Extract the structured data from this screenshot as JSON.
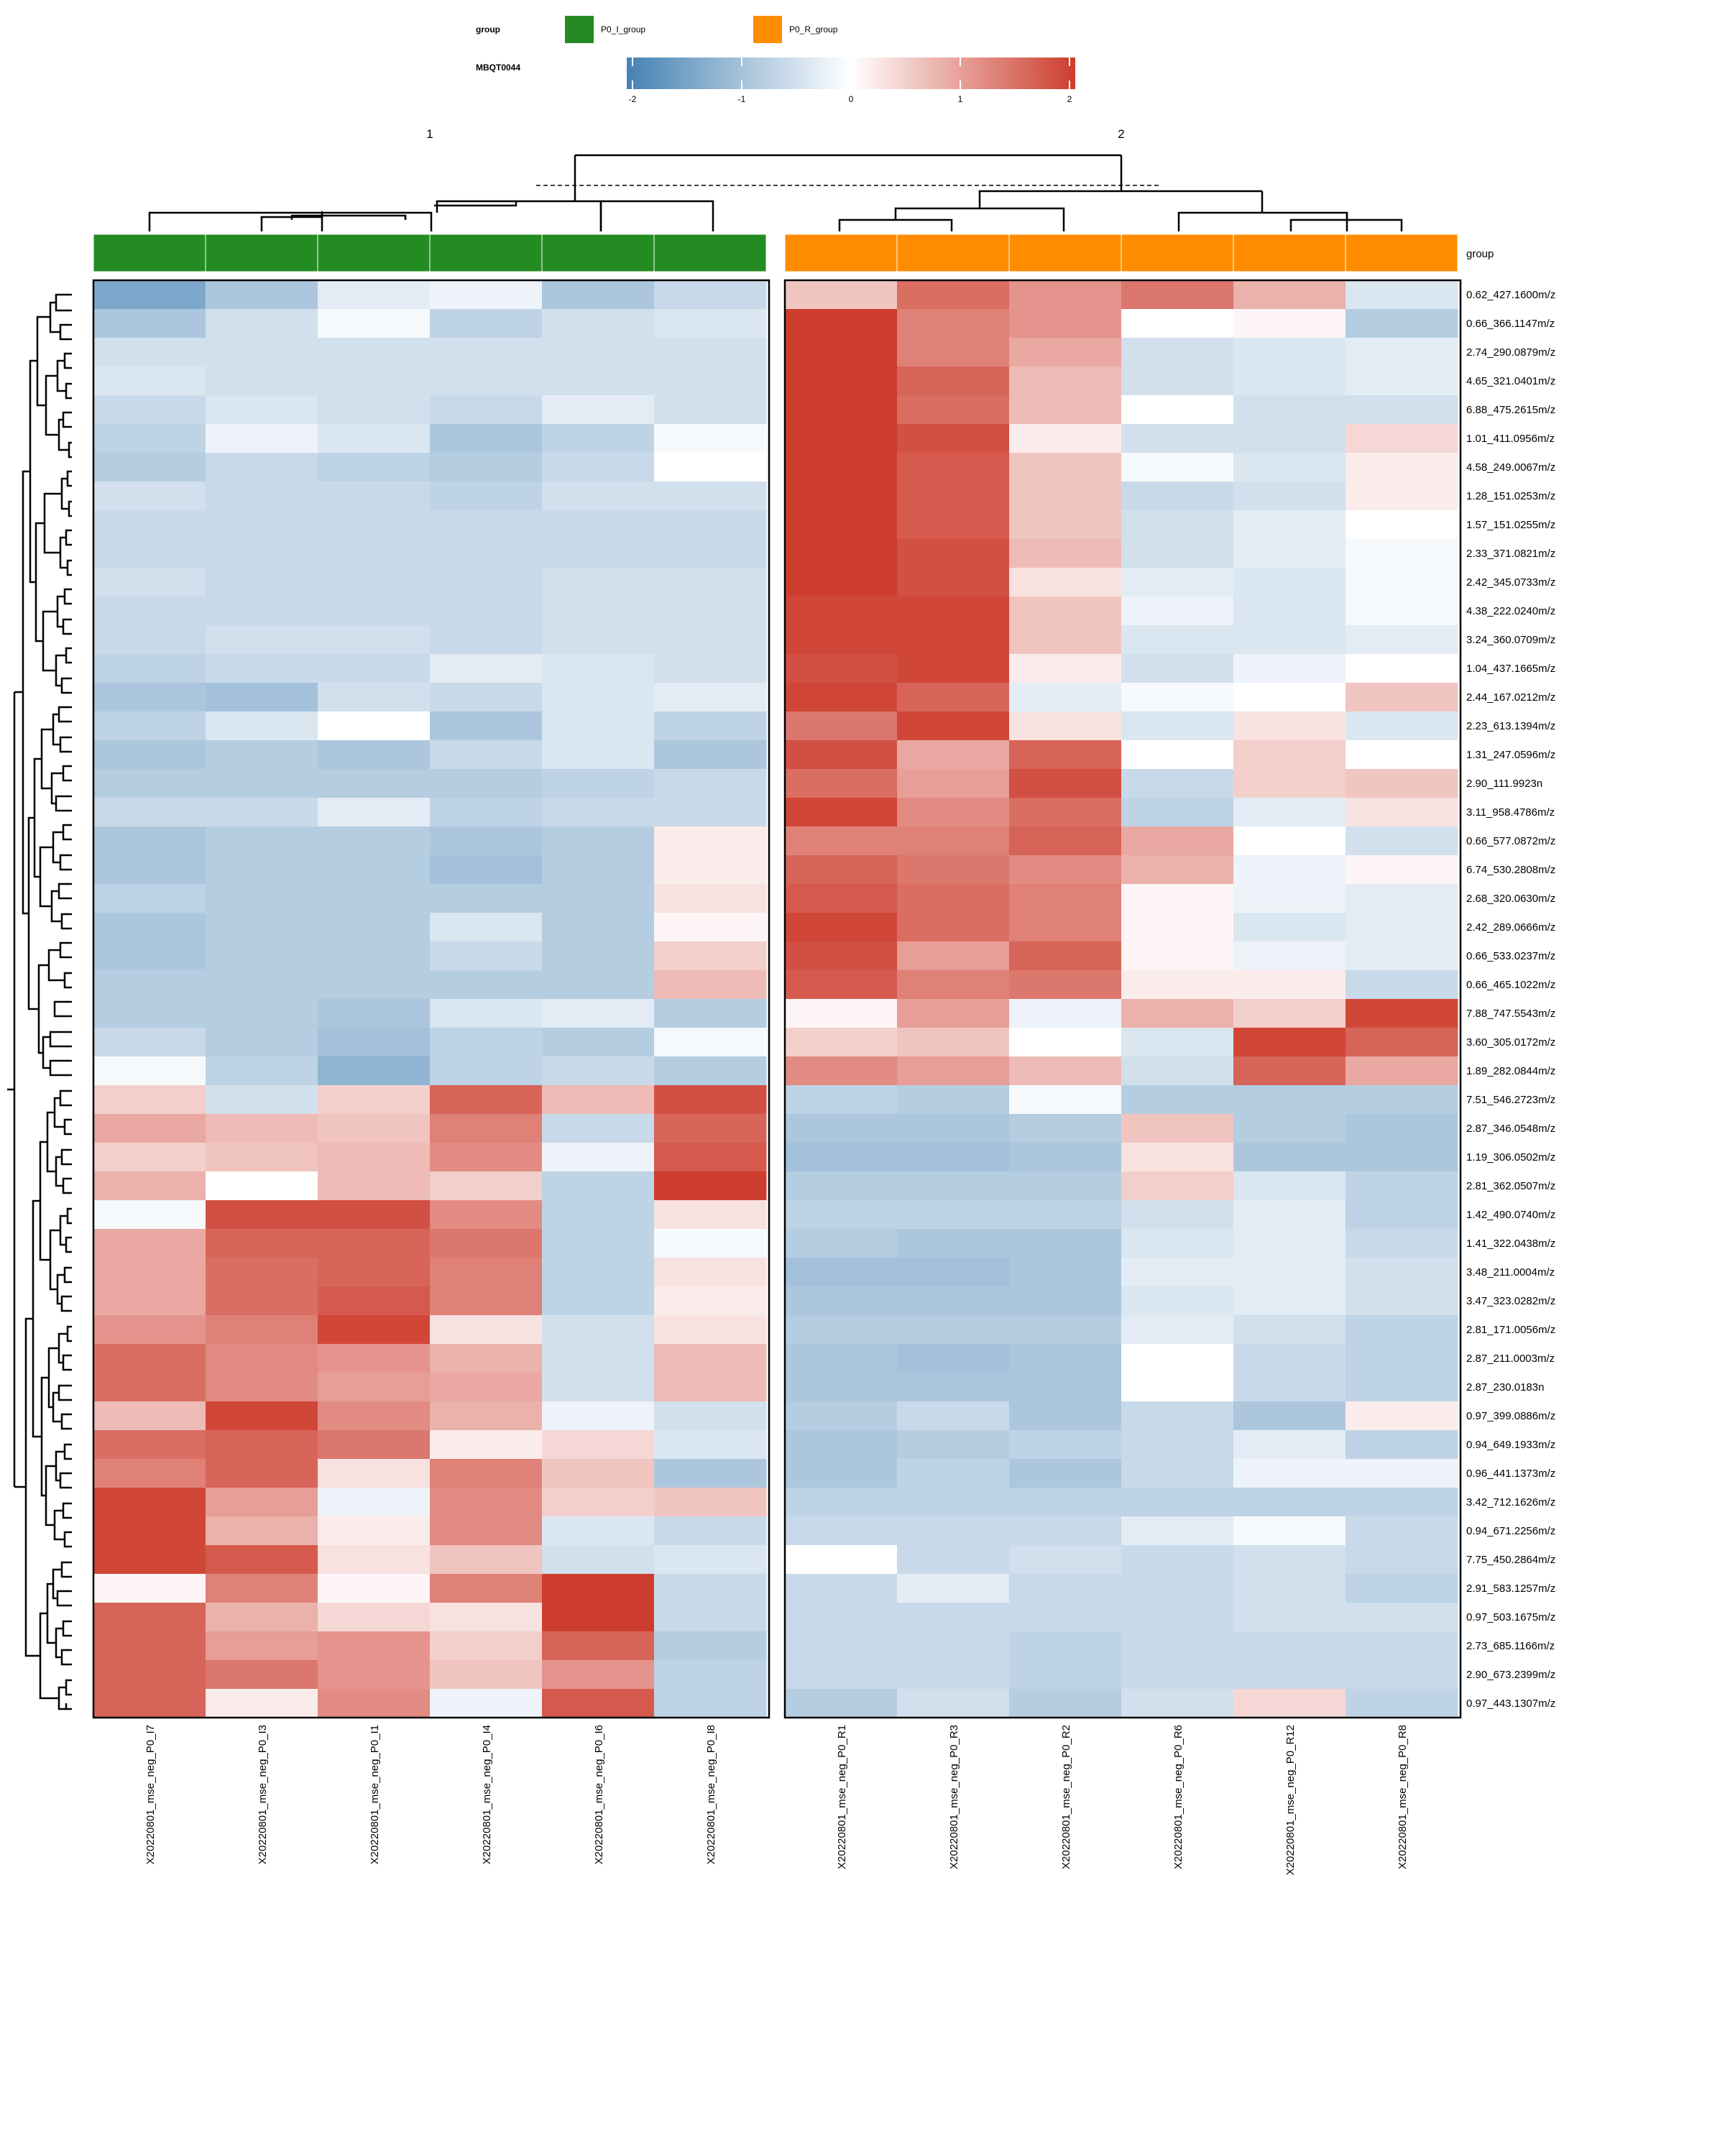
{
  "legend": {
    "group_title": "group",
    "group_items": [
      {
        "label": "P0_I_group",
        "color": "#238B22"
      },
      {
        "label": "P0_R_group",
        "color": "#FF8C00"
      }
    ],
    "scale_title": "MBQT0044",
    "scale_ticks": [
      "-2",
      "-1",
      "0",
      "1",
      "2"
    ],
    "scale_colors": {
      "low": "#4682B4",
      "mid": "#FFFFFF",
      "high": "#CD3D2E"
    }
  },
  "clusters": {
    "labels": [
      "1",
      "2"
    ]
  },
  "annotation_row_label": "group",
  "chart_data": {
    "type": "heatmap",
    "value_range": [
      -2,
      2
    ],
    "columns": [
      {
        "name": "X20220801_mse_neg_P0_I7",
        "group": "P0_I_group"
      },
      {
        "name": "X20220801_mse_neg_P0_I3",
        "group": "P0_I_group"
      },
      {
        "name": "X20220801_mse_neg_P0_I1",
        "group": "P0_I_group"
      },
      {
        "name": "X20220801_mse_neg_P0_I4",
        "group": "P0_I_group"
      },
      {
        "name": "X20220801_mse_neg_P0_I6",
        "group": "P0_I_group"
      },
      {
        "name": "X20220801_mse_neg_P0_I8",
        "group": "P0_I_group"
      },
      {
        "name": "X20220801_mse_neg_P0_R1",
        "group": "P0_R_group"
      },
      {
        "name": "X20220801_mse_neg_P0_R3",
        "group": "P0_R_group"
      },
      {
        "name": "X20220801_mse_neg_P0_R2",
        "group": "P0_R_group"
      },
      {
        "name": "X20220801_mse_neg_P0_R6",
        "group": "P0_R_group"
      },
      {
        "name": "X20220801_mse_neg_P0_R12",
        "group": "P0_R_group"
      },
      {
        "name": "X20220801_mse_neg_P0_R8",
        "group": "P0_R_group"
      }
    ],
    "rows": [
      "0.62_427.1600m/z",
      "0.66_366.1147m/z",
      "2.74_290.0879m/z",
      "4.65_321.0401m/z",
      "6.88_475.2615m/z",
      "1.01_411.0956m/z",
      "4.58_249.0067m/z",
      "1.28_151.0253m/z",
      "1.57_151.0255m/z",
      "2.33_371.0821m/z",
      "2.42_345.0733m/z",
      "4.38_222.0240m/z",
      "3.24_360.0709m/z",
      "1.04_437.1665m/z",
      "2.44_167.0212m/z",
      "2.23_613.1394m/z",
      "1.31_247.0596m/z",
      "2.90_111.9923n",
      "3.11_958.4786m/z",
      "0.66_577.0872m/z",
      "6.74_530.2808m/z",
      "2.68_320.0630m/z",
      "2.42_289.0666m/z",
      "0.66_533.0237m/z",
      "0.66_465.1022m/z",
      "7.88_747.5543m/z",
      "3.60_305.0172m/z",
      "1.89_282.0844m/z",
      "7.51_546.2723m/z",
      "2.87_346.0548m/z",
      "1.19_306.0502m/z",
      "2.81_362.0507m/z",
      "1.42_490.0740m/z",
      "1.41_322.0438m/z",
      "3.48_211.0004m/z",
      "3.47_323.0282m/z",
      "2.81_171.0056m/z",
      "2.87_211.0003m/z",
      "2.87_230.0183n",
      "0.97_399.0886m/z",
      "0.94_649.1933m/z",
      "0.96_441.1373m/z",
      "3.42_712.1626m/z",
      "0.94_671.2256m/z",
      "7.75_450.2864m/z",
      "2.91_583.1257m/z",
      "0.97_503.1675m/z",
      "2.73_685.1166m/z",
      "2.90_673.2399m/z",
      "0.97_443.1307m/z"
    ],
    "values": [
      [
        -1.4,
        -0.9,
        -0.3,
        -0.2,
        -0.9,
        -0.6,
        0.6,
        1.5,
        1.1,
        1.4,
        0.8,
        -0.4
      ],
      [
        -0.9,
        -0.5,
        -0.1,
        -0.7,
        -0.5,
        -0.4,
        2.0,
        1.3,
        1.1,
        0.0,
        0.1,
        -0.8
      ],
      [
        -0.5,
        -0.5,
        -0.5,
        -0.5,
        -0.5,
        -0.5,
        2.0,
        1.3,
        0.9,
        -0.5,
        -0.4,
        -0.3
      ],
      [
        -0.4,
        -0.5,
        -0.5,
        -0.5,
        -0.5,
        -0.5,
        2.0,
        1.6,
        0.7,
        -0.5,
        -0.4,
        -0.3
      ],
      [
        -0.6,
        -0.4,
        -0.5,
        -0.6,
        -0.3,
        -0.5,
        2.0,
        1.5,
        0.7,
        0.0,
        -0.5,
        -0.5
      ],
      [
        -0.7,
        -0.2,
        -0.4,
        -0.9,
        -0.7,
        -0.1,
        2.0,
        1.8,
        0.2,
        -0.5,
        -0.5,
        0.4
      ],
      [
        -0.8,
        -0.6,
        -0.7,
        -0.8,
        -0.6,
        0.0,
        2.0,
        1.7,
        0.6,
        -0.1,
        -0.4,
        0.2
      ],
      [
        -0.5,
        -0.6,
        -0.6,
        -0.7,
        -0.5,
        -0.5,
        2.0,
        1.7,
        0.6,
        -0.6,
        -0.5,
        0.2
      ],
      [
        -0.6,
        -0.6,
        -0.6,
        -0.6,
        -0.6,
        -0.6,
        2.0,
        1.7,
        0.6,
        -0.5,
        -0.3,
        0.0
      ],
      [
        -0.6,
        -0.6,
        -0.6,
        -0.6,
        -0.6,
        -0.6,
        2.0,
        1.8,
        0.7,
        -0.5,
        -0.3,
        -0.1
      ],
      [
        -0.5,
        -0.6,
        -0.6,
        -0.6,
        -0.5,
        -0.5,
        2.0,
        1.8,
        0.3,
        -0.3,
        -0.4,
        -0.1
      ],
      [
        -0.6,
        -0.6,
        -0.6,
        -0.6,
        -0.5,
        -0.5,
        1.9,
        1.9,
        0.6,
        -0.2,
        -0.4,
        -0.1
      ],
      [
        -0.6,
        -0.5,
        -0.5,
        -0.6,
        -0.5,
        -0.5,
        1.9,
        1.9,
        0.6,
        -0.4,
        -0.4,
        -0.3
      ],
      [
        -0.7,
        -0.6,
        -0.6,
        -0.3,
        -0.4,
        -0.5,
        1.8,
        1.9,
        0.2,
        -0.5,
        -0.2,
        0.0
      ],
      [
        -0.9,
        -1.0,
        -0.5,
        -0.6,
        -0.4,
        -0.3,
        1.9,
        1.6,
        -0.3,
        -0.1,
        0.0,
        0.6
      ],
      [
        -0.7,
        -0.4,
        0.0,
        -0.9,
        -0.4,
        -0.7,
        1.4,
        1.9,
        0.3,
        -0.4,
        0.3,
        -0.4
      ],
      [
        -0.9,
        -0.8,
        -0.9,
        -0.6,
        -0.4,
        -0.9,
        1.8,
        0.9,
        1.6,
        0.0,
        0.5,
        0.0
      ],
      [
        -0.8,
        -0.8,
        -0.8,
        -0.8,
        -0.7,
        -0.6,
        1.5,
        1.0,
        1.8,
        -0.6,
        0.5,
        0.6
      ],
      [
        -0.6,
        -0.6,
        -0.3,
        -0.7,
        -0.6,
        -0.6,
        1.9,
        1.2,
        1.5,
        -0.7,
        -0.3,
        0.3
      ],
      [
        -0.9,
        -0.8,
        -0.8,
        -0.9,
        -0.8,
        0.2,
        1.3,
        1.3,
        1.6,
        0.9,
        0.0,
        -0.5
      ],
      [
        -0.9,
        -0.8,
        -0.8,
        -1.0,
        -0.8,
        0.2,
        1.6,
        1.4,
        1.2,
        0.8,
        -0.2,
        0.1
      ],
      [
        -0.7,
        -0.8,
        -0.8,
        -0.8,
        -0.8,
        0.3,
        1.7,
        1.5,
        1.3,
        0.1,
        -0.2,
        -0.3
      ],
      [
        -0.9,
        -0.8,
        -0.8,
        -0.4,
        -0.8,
        0.1,
        1.9,
        1.5,
        1.3,
        0.1,
        -0.4,
        -0.3
      ],
      [
        -0.9,
        -0.8,
        -0.8,
        -0.6,
        -0.8,
        0.5,
        1.8,
        1.0,
        1.6,
        0.1,
        -0.2,
        -0.3
      ],
      [
        -0.8,
        -0.8,
        -0.8,
        -0.8,
        -0.8,
        0.7,
        1.7,
        1.3,
        1.4,
        0.2,
        0.2,
        -0.6
      ],
      [
        -0.8,
        -0.8,
        -0.9,
        -0.4,
        -0.3,
        -0.8,
        0.1,
        1.0,
        -0.2,
        0.8,
        0.5,
        1.9
      ],
      [
        -0.6,
        -0.8,
        -1.0,
        -0.7,
        -0.8,
        -0.1,
        0.5,
        0.6,
        0.0,
        -0.4,
        1.9,
        1.6
      ],
      [
        -0.1,
        -0.7,
        -1.2,
        -0.7,
        -0.6,
        -0.8,
        1.2,
        1.0,
        0.7,
        -0.5,
        1.6,
        0.9
      ],
      [
        0.5,
        -0.5,
        0.5,
        1.6,
        0.7,
        1.8,
        -0.7,
        -0.8,
        -0.1,
        -0.8,
        -0.8,
        -0.8
      ],
      [
        0.9,
        0.7,
        0.6,
        1.3,
        -0.6,
        1.6,
        -0.9,
        -0.9,
        -0.8,
        0.6,
        -0.8,
        -0.9
      ],
      [
        0.5,
        0.6,
        0.7,
        1.2,
        -0.2,
        1.7,
        -1.0,
        -1.0,
        -0.9,
        0.3,
        -0.9,
        -0.9
      ],
      [
        0.8,
        0.0,
        0.7,
        0.5,
        -0.7,
        2.0,
        -0.8,
        -0.8,
        -0.8,
        0.5,
        -0.4,
        -0.7
      ],
      [
        -0.1,
        1.8,
        1.8,
        1.2,
        -0.7,
        0.3,
        -0.7,
        -0.7,
        -0.7,
        -0.5,
        -0.3,
        -0.7
      ],
      [
        0.9,
        1.6,
        1.6,
        1.4,
        -0.7,
        -0.1,
        -0.8,
        -0.9,
        -0.9,
        -0.4,
        -0.3,
        -0.6
      ],
      [
        0.9,
        1.5,
        1.6,
        1.3,
        -0.7,
        0.3,
        -1.0,
        -1.0,
        -0.9,
        -0.3,
        -0.3,
        -0.5
      ],
      [
        0.9,
        1.5,
        1.7,
        1.3,
        -0.7,
        0.2,
        -0.9,
        -0.9,
        -0.9,
        -0.4,
        -0.3,
        -0.5
      ],
      [
        1.1,
        1.3,
        1.9,
        0.3,
        -0.5,
        0.3,
        -0.8,
        -0.8,
        -0.8,
        -0.3,
        -0.5,
        -0.7
      ],
      [
        1.5,
        1.2,
        1.1,
        0.8,
        -0.5,
        0.7,
        -0.9,
        -1.0,
        -0.9,
        0.0,
        -0.6,
        -0.7
      ],
      [
        1.5,
        1.2,
        1.0,
        0.9,
        -0.5,
        0.7,
        -0.9,
        -0.9,
        -0.9,
        0.0,
        -0.6,
        -0.7
      ],
      [
        0.7,
        1.9,
        1.2,
        0.8,
        -0.2,
        -0.5,
        -0.8,
        -0.6,
        -0.9,
        -0.6,
        -0.9,
        0.2
      ],
      [
        1.5,
        1.6,
        1.4,
        0.2,
        0.4,
        -0.4,
        -0.9,
        -0.8,
        -0.7,
        -0.6,
        -0.3,
        -0.7
      ],
      [
        1.3,
        1.6,
        0.3,
        1.3,
        0.6,
        -0.9,
        -0.9,
        -0.7,
        -0.9,
        -0.6,
        -0.2,
        -0.2
      ],
      [
        1.9,
        1.0,
        -0.2,
        1.2,
        0.5,
        0.6,
        -0.7,
        -0.7,
        -0.7,
        -0.7,
        -0.7,
        -0.7
      ],
      [
        1.9,
        0.8,
        0.2,
        1.2,
        -0.4,
        -0.6,
        -0.6,
        -0.6,
        -0.6,
        -0.3,
        -0.1,
        -0.6
      ],
      [
        1.9,
        1.7,
        0.3,
        0.6,
        -0.5,
        -0.4,
        0.0,
        -0.6,
        -0.5,
        -0.6,
        -0.5,
        -0.6
      ],
      [
        0.1,
        1.3,
        0.1,
        1.3,
        2.0,
        -0.6,
        -0.6,
        -0.3,
        -0.6,
        -0.6,
        -0.5,
        -0.7
      ],
      [
        1.6,
        0.8,
        0.4,
        0.3,
        2.0,
        -0.6,
        -0.6,
        -0.6,
        -0.6,
        -0.6,
        -0.5,
        -0.5
      ],
      [
        1.6,
        1.0,
        1.1,
        0.5,
        1.6,
        -0.8,
        -0.6,
        -0.6,
        -0.7,
        -0.6,
        -0.6,
        -0.6
      ],
      [
        1.6,
        1.4,
        1.1,
        0.6,
        1.1,
        -0.7,
        -0.6,
        -0.6,
        -0.7,
        -0.6,
        -0.6,
        -0.6
      ],
      [
        1.6,
        0.2,
        1.2,
        -0.2,
        1.7,
        -0.7,
        -0.8,
        -0.5,
        -0.8,
        -0.5,
        0.4,
        -0.7
      ]
    ]
  }
}
